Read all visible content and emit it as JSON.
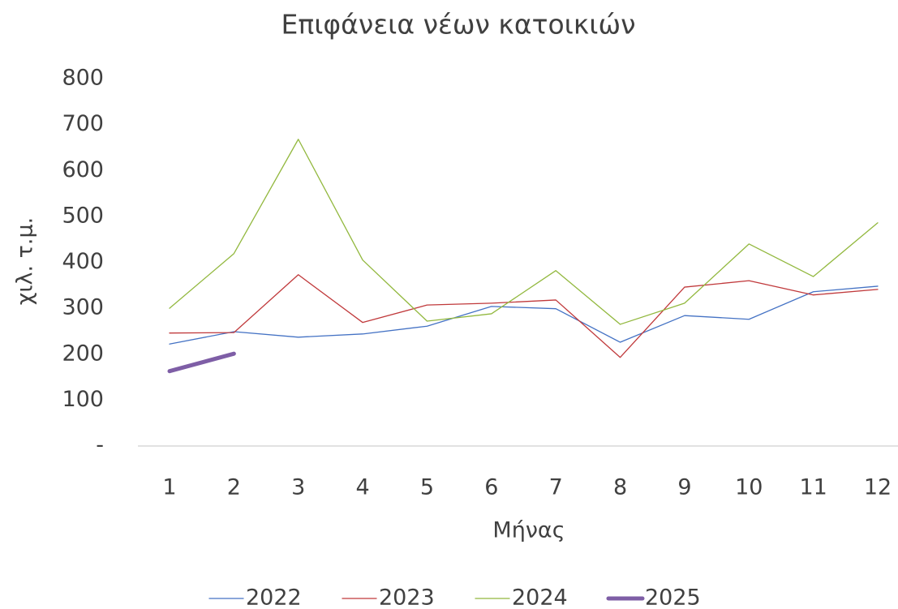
{
  "chart_data": {
    "type": "line",
    "title": "Επιφάνεια νέων κατοικιών",
    "x_label": "Μήνας",
    "y_label": "χιλ. τ.μ.",
    "categories": [
      "1",
      "2",
      "3",
      "4",
      "5",
      "6",
      "7",
      "8",
      "9",
      "10",
      "11",
      "12"
    ],
    "series": [
      {
        "name": "2022",
        "color": "#4472c4",
        "line_width": 1.3,
        "values": [
          222,
          249,
          237,
          244,
          261,
          304,
          299,
          226,
          284,
          276,
          336,
          348
        ]
      },
      {
        "name": "2023",
        "color": "#c0393b",
        "line_width": 1.3,
        "values": [
          246,
          247,
          373,
          269,
          307,
          311,
          318,
          193,
          346,
          360,
          329,
          341
        ]
      },
      {
        "name": "2024",
        "color": "#92b83e",
        "line_width": 1.3,
        "values": [
          300,
          419,
          668,
          405,
          272,
          288,
          382,
          265,
          311,
          440,
          369,
          486
        ]
      },
      {
        "name": "2025",
        "color": "#7e5ea6",
        "line_width": 5,
        "values": [
          163,
          201,
          null,
          null,
          null,
          null,
          null,
          null,
          null,
          null,
          null,
          null
        ]
      }
    ],
    "ylim": [
      0,
      800
    ],
    "yticks": [
      {
        "value": 0,
        "label": "-"
      },
      100,
      200,
      300,
      400,
      500,
      600,
      700,
      800
    ],
    "legend": "bottom"
  }
}
